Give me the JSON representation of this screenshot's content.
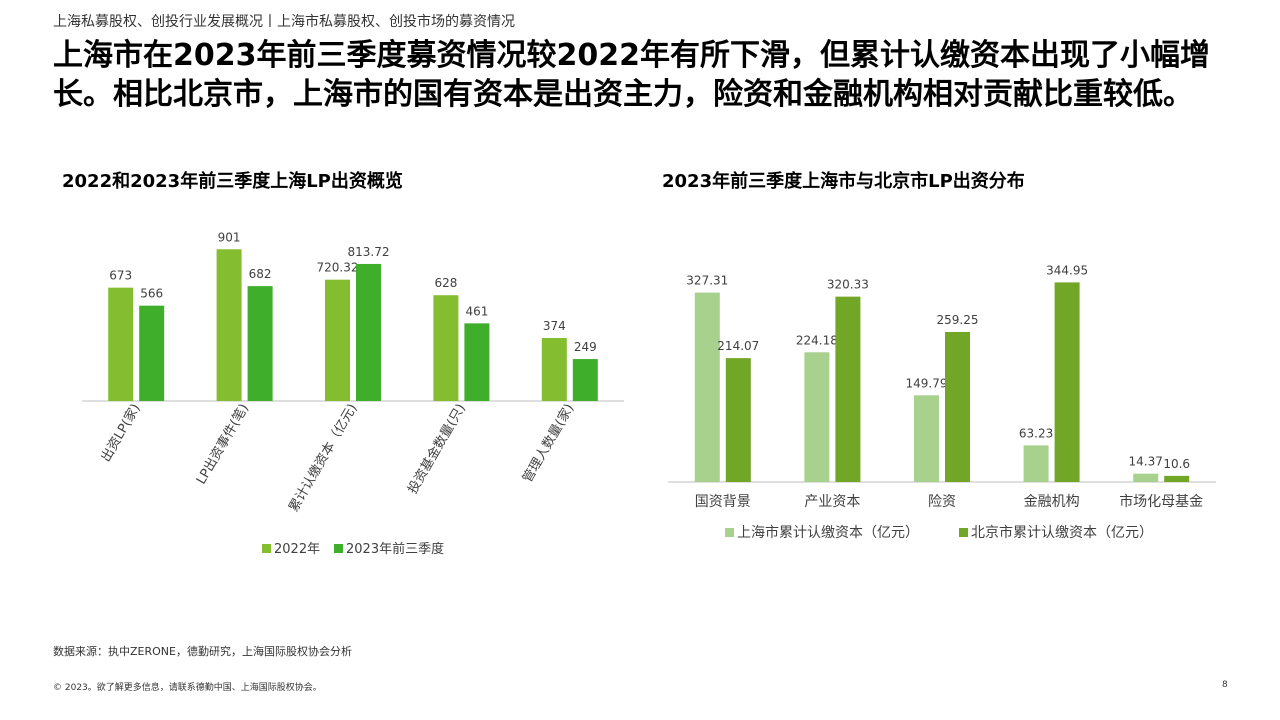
{
  "breadcrumb": "上海私募股权、创投行业发展概况丨上海市私募股权、创投市场的募资情况",
  "headline": "上海市在2023年前三季度募资情况较2022年有所下滑，但累计认缴资本出现了小幅增长。相比北京市，上海市的国有资本是出资主力，险资和金融机构相对贡献比重较低。",
  "source": "数据来源：执中ZERONE，德勤研究，上海国际股权协会分析",
  "footer": "© 2023。欲了解更多信息，请联系德勤中国、上海国际股权协会。",
  "page_number": "8",
  "chart_data": [
    {
      "type": "bar",
      "title": "2022和2023年前三季度上海LP出资概览",
      "categories": [
        "出资LP(家)",
        "LP出资事件(笔)",
        "累计认缴资本（亿元)",
        "投资基金数量(只)",
        "管理人数量(家)"
      ],
      "series": [
        {
          "name": "2022年",
          "color": "#84bd2f",
          "values": [
            673,
            901,
            720.32,
            628,
            374
          ],
          "labels": [
            "673",
            "901",
            "720.32",
            "628",
            "374"
          ]
        },
        {
          "name": "2023年前三季度",
          "color": "#3fae2a",
          "values": [
            566,
            682,
            813.72,
            461,
            249
          ],
          "labels": [
            "566",
            "682",
            "813.72",
            "461",
            "249"
          ]
        }
      ],
      "ylim": [
        0,
        950
      ],
      "legend": "bottom",
      "grid": false
    },
    {
      "type": "bar",
      "title": "2023年前三季度上海市与北京市LP出资分布",
      "categories": [
        "国资背景",
        "产业资本",
        "险资",
        "金融机构",
        "市场化母基金"
      ],
      "series": [
        {
          "name": "上海市累计认缴资本（亿元）",
          "color": "#a9d18e",
          "values": [
            327.31,
            224.18,
            149.79,
            63.23,
            14.37
          ],
          "labels": [
            "327.31",
            "224.18",
            "149.79",
            "63.23",
            "14.37"
          ]
        },
        {
          "name": "北京市累计认缴资本（亿元）",
          "color": "#72a626",
          "values": [
            214.07,
            320.33,
            259.25,
            344.95,
            10.6
          ],
          "labels": [
            "214.07",
            "320.33",
            "259.25",
            "344.95",
            "10.6"
          ]
        }
      ],
      "ylim": [
        0,
        375
      ],
      "legend": "bottom",
      "grid": false
    }
  ]
}
